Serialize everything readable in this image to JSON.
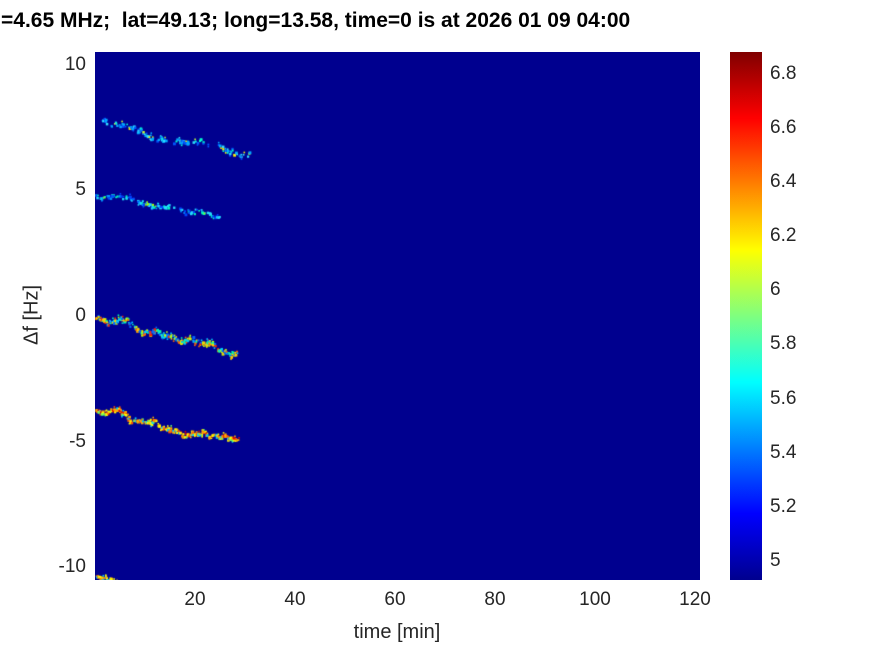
{
  "chart_data": {
    "type": "heatmap",
    "title": "=4.65 MHz;  lat=49.13; long=13.58, time=0 is at 2026 01 09 04:00",
    "xlabel": "time [min]",
    "ylabel": "Δf [Hz]",
    "xlim": [
      0,
      121
    ],
    "ylim": [
      -10.5,
      10.5
    ],
    "grid": false,
    "legend": "none",
    "background_color": "#00008f",
    "colormap": "jet",
    "colormap_stops": [
      {
        "pos": 0.0,
        "color": "#00008f"
      },
      {
        "pos": 0.125,
        "color": "#0000ff"
      },
      {
        "pos": 0.375,
        "color": "#00ffff"
      },
      {
        "pos": 0.625,
        "color": "#ffff00"
      },
      {
        "pos": 0.875,
        "color": "#ff0000"
      },
      {
        "pos": 1.0,
        "color": "#800000"
      }
    ],
    "xticks": [
      {
        "label": "20",
        "value": 20
      },
      {
        "label": "40",
        "value": 40
      },
      {
        "label": "60",
        "value": 60
      },
      {
        "label": "80",
        "value": 80
      },
      {
        "label": "100",
        "value": 100
      },
      {
        "label": "120",
        "value": 120
      }
    ],
    "yticks": [
      {
        "label": "10",
        "value": 10
      },
      {
        "label": "5",
        "value": 5
      },
      {
        "label": "0",
        "value": 0
      },
      {
        "label": "-5",
        "value": -5
      },
      {
        "label": "-10",
        "value": -10
      }
    ],
    "colorbar": {
      "position": "right",
      "vmin": 4.93,
      "vmax": 6.88,
      "ticks": [
        {
          "label": "6.8",
          "value": 6.8
        },
        {
          "label": "6.6",
          "value": 6.6
        },
        {
          "label": "6.4",
          "value": 6.4
        },
        {
          "label": "6.2",
          "value": 6.2
        },
        {
          "label": "6",
          "value": 6.0
        },
        {
          "label": "5.8",
          "value": 5.8
        },
        {
          "label": "5.6",
          "value": 5.6
        },
        {
          "label": "5.4",
          "value": 5.4
        },
        {
          "label": "5.2",
          "value": 5.2
        },
        {
          "label": "5",
          "value": 5.0
        }
      ]
    },
    "traces": [
      {
        "name": "doppler-trace-upper",
        "t": [
          1.0,
          31.0
        ],
        "f": [
          7.85,
          6.35
        ],
        "density": 0.45,
        "jitter": 0.12,
        "gaps": [
          [
            14.0,
            15.5
          ],
          [
            21.5,
            24.5
          ]
        ],
        "palette": [
          "#0055ff",
          "#00aaff",
          "#33e0ff",
          "#00ffcc",
          "#ccff33",
          "#ffee00"
        ],
        "weights": [
          0.25,
          0.3,
          0.22,
          0.13,
          0.05,
          0.05
        ]
      },
      {
        "name": "doppler-trace-second",
        "t": [
          0.0,
          25.5
        ],
        "f": [
          4.85,
          3.95
        ],
        "density": 0.42,
        "jitter": 0.1,
        "gaps": [
          [
            15.0,
            16.5
          ]
        ],
        "palette": [
          "#0044ff",
          "#0099ff",
          "#22ddff",
          "#00ffbb",
          "#aaff00"
        ],
        "weights": [
          0.3,
          0.3,
          0.2,
          0.12,
          0.08
        ]
      },
      {
        "name": "doppler-trace-center",
        "t": [
          0.0,
          28.5
        ],
        "f": [
          -0.1,
          -1.35
        ],
        "density": 0.75,
        "jitter": 0.12,
        "gaps": [],
        "palette": [
          "#0066ff",
          "#00ccff",
          "#00ffaa",
          "#ccff00",
          "#ffcc00",
          "#ff6600",
          "#ff2200"
        ],
        "weights": [
          0.18,
          0.2,
          0.15,
          0.17,
          0.15,
          0.1,
          0.05
        ]
      },
      {
        "name": "doppler-trace-lower",
        "t": [
          0.0,
          28.5
        ],
        "f": [
          -3.7,
          -4.95
        ],
        "density": 0.85,
        "jitter": 0.12,
        "gaps": [],
        "palette": [
          "#00ccff",
          "#66ff66",
          "#ffff00",
          "#ffaa00",
          "#ff5500",
          "#dd0000"
        ],
        "weights": [
          0.12,
          0.1,
          0.28,
          0.25,
          0.15,
          0.1
        ]
      },
      {
        "name": "doppler-trace-bottom-edge",
        "t": [
          0.0,
          4.5
        ],
        "f": [
          -10.35,
          -10.5
        ],
        "density": 0.8,
        "jitter": 0.08,
        "gaps": [],
        "palette": [
          "#00ccff",
          "#ffff00",
          "#ff8800"
        ],
        "weights": [
          0.4,
          0.35,
          0.25
        ]
      }
    ]
  }
}
